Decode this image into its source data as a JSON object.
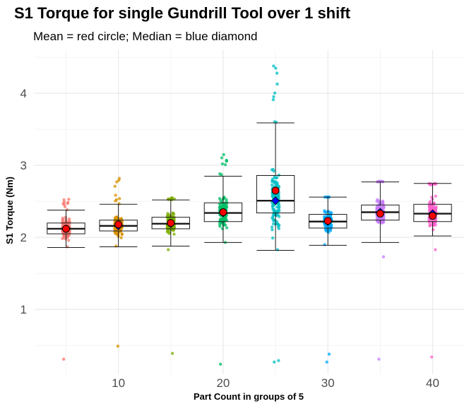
{
  "chart_data": {
    "type": "box",
    "title": "S1 Torque for single Gundrill Tool over 1 shift",
    "subtitle": "Mean = red circle; Median = blue diamond",
    "xlabel": "Part Count in groups of 5",
    "ylabel": "S1 Torque (Nm)",
    "xlim": [
      2,
      43
    ],
    "ylim": [
      0.1,
      4.6
    ],
    "x_ticks": [
      10,
      20,
      30,
      40
    ],
    "y_ticks": [
      1,
      2,
      3,
      4
    ],
    "grid": true,
    "groups": [
      {
        "x": 5,
        "color": "#F8766D",
        "q1": 2.05,
        "median": 2.12,
        "q3": 2.2,
        "whisker_low": 1.86,
        "whisker_high": 2.38,
        "mean": 2.12,
        "min": 1.87,
        "max": 2.53,
        "outliers": [
          0.31
        ]
      },
      {
        "x": 10,
        "color": "#D89000",
        "q1": 2.09,
        "median": 2.16,
        "q3": 2.24,
        "whisker_low": 1.87,
        "whisker_high": 2.46,
        "mean": 2.18,
        "min": 1.88,
        "max": 2.82,
        "outliers": [
          0.49
        ]
      },
      {
        "x": 15,
        "color": "#7CAE00",
        "q1": 2.12,
        "median": 2.19,
        "q3": 2.28,
        "whisker_low": 1.88,
        "whisker_high": 2.52,
        "mean": 2.2,
        "min": 1.83,
        "max": 2.55,
        "outliers": [
          0.39
        ]
      },
      {
        "x": 20,
        "color": "#00BE67",
        "q1": 2.22,
        "median": 2.34,
        "q3": 2.48,
        "whisker_low": 1.93,
        "whisker_high": 2.85,
        "mean": 2.35,
        "min": 1.93,
        "max": 3.15,
        "outliers": [
          0.24
        ]
      },
      {
        "x": 25,
        "color": "#00BFC4",
        "q1": 2.34,
        "median": 2.51,
        "q3": 2.86,
        "whisker_low": 1.82,
        "whisker_high": 3.59,
        "mean": 2.65,
        "min": 1.83,
        "max": 4.38,
        "outliers": [
          0.27,
          0.29
        ]
      },
      {
        "x": 30,
        "color": "#00A9FF",
        "q1": 2.13,
        "median": 2.22,
        "q3": 2.32,
        "whisker_low": 1.89,
        "whisker_high": 2.56,
        "mean": 2.23,
        "min": 1.9,
        "max": 2.56,
        "outliers": [
          0.27,
          0.38
        ]
      },
      {
        "x": 35,
        "color": "#C77CFF",
        "q1": 2.24,
        "median": 2.35,
        "q3": 2.45,
        "whisker_low": 1.93,
        "whisker_high": 2.77,
        "mean": 2.33,
        "min": 1.73,
        "max": 2.78,
        "outliers": [
          0.31
        ]
      },
      {
        "x": 40,
        "color": "#FF61CC",
        "q1": 2.22,
        "median": 2.33,
        "q3": 2.46,
        "whisker_low": 2.02,
        "whisker_high": 2.75,
        "mean": 2.3,
        "min": 1.83,
        "max": 2.73,
        "outliers": [
          0.34
        ]
      }
    ],
    "mean_color": "#FF0000",
    "median_color": "#0000FF"
  }
}
